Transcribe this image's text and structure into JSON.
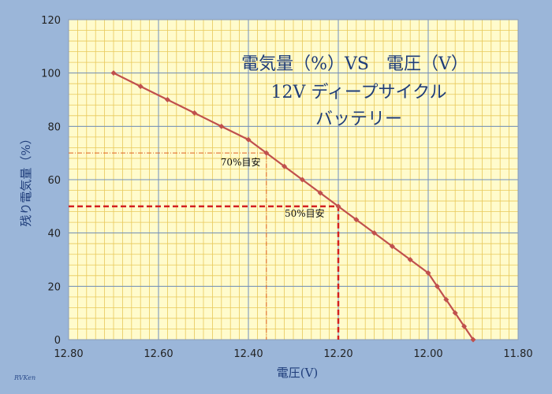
{
  "chart_data": {
    "type": "line",
    "title_lines": [
      "電気量（%）VS　電圧（V）",
      "12V ディープサイクル",
      "バッテリー"
    ],
    "xlabel": "電圧(V)",
    "ylabel": "残り電気量（%）",
    "xlim": [
      12.8,
      11.8
    ],
    "ylim": [
      0,
      120
    ],
    "x_reversed": true,
    "x_ticks": [
      "12.80",
      "12.60",
      "12.40",
      "12.20",
      "12.00",
      "11.80"
    ],
    "y_ticks": [
      "0",
      "20",
      "40",
      "60",
      "80",
      "100",
      "120"
    ],
    "grid": true,
    "legend": "none",
    "series": [
      {
        "color": "#c0504d",
        "points": [
          [
            12.7,
            100
          ],
          [
            12.64,
            95
          ],
          [
            12.58,
            90
          ],
          [
            12.52,
            85
          ],
          [
            12.46,
            80
          ],
          [
            12.4,
            75
          ],
          [
            12.36,
            70
          ],
          [
            12.32,
            65
          ],
          [
            12.28,
            60
          ],
          [
            12.24,
            55
          ],
          [
            12.2,
            50
          ],
          [
            12.16,
            45
          ],
          [
            12.12,
            40
          ],
          [
            12.08,
            35
          ],
          [
            12.04,
            30
          ],
          [
            12.0,
            25
          ],
          [
            11.98,
            20
          ],
          [
            11.96,
            15
          ],
          [
            11.94,
            10
          ],
          [
            11.92,
            5
          ],
          [
            11.9,
            0
          ]
        ]
      }
    ],
    "annotations": [
      {
        "text": "70%目安",
        "x": 12.36,
        "y": 70,
        "color": "#e06020",
        "style": "dash-dot"
      },
      {
        "text": "50%目安",
        "x": 12.2,
        "y": 50,
        "color": "#d42020",
        "style": "dashed"
      }
    ],
    "watermark": "RVKen"
  },
  "colors": {
    "background": "#9bb6d9",
    "plot_area": "#fffbcc",
    "grid_minor": "#e8c95a",
    "grid_major": "#6f8fc0",
    "axis_text": "#222222",
    "title_text": "#1f3d7a"
  }
}
